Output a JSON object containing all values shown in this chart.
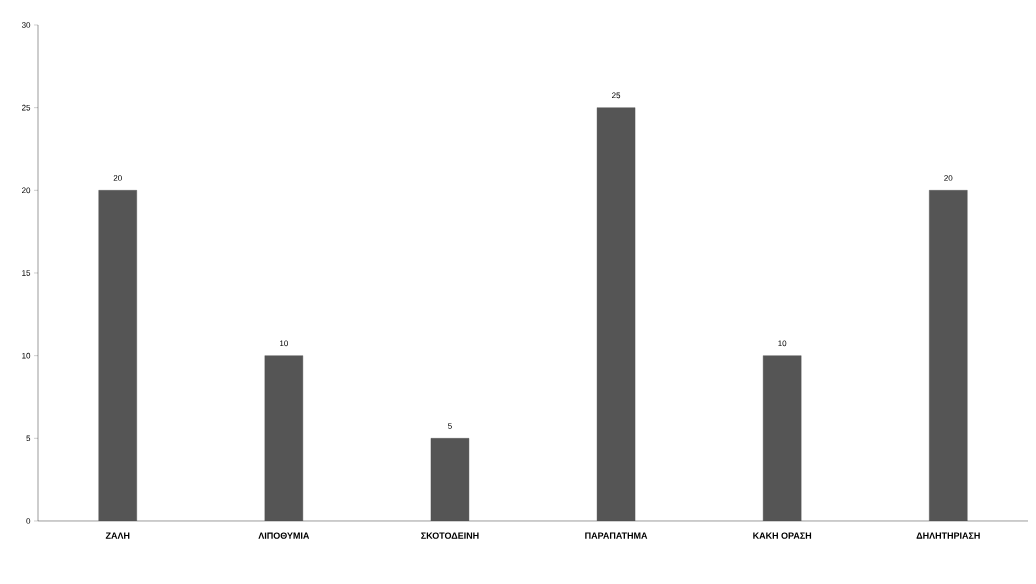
{
  "chart_data": {
    "type": "bar",
    "categories": [
      "ΖΑΛΗ",
      "ΛΙΠΟΘΥΜΙΑ",
      "ΣΚΟΤΟΔΕΙΝΗ",
      "ΠΑΡΑΠΑΤΗΜΑ",
      "ΚΑΚΗ ΟΡΑΣΗ",
      "ΔΗΛΗΤΗΡΙΑΣΗ"
    ],
    "values": [
      20,
      10,
      5,
      25,
      10,
      20
    ],
    "color": "#555555",
    "ylim": [
      0,
      30
    ],
    "yticks": [
      0,
      5,
      10,
      15,
      20,
      25,
      30
    ],
    "data_labels": true
  }
}
